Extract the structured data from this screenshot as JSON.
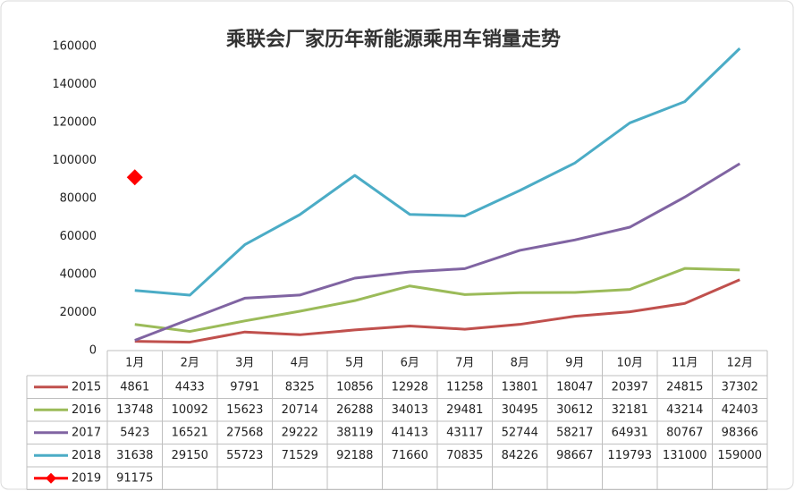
{
  "chart_data": {
    "type": "line",
    "title": "乘联会厂家历年新能源乘用车销量走势",
    "categories": [
      "1月",
      "2月",
      "3月",
      "4月",
      "5月",
      "6月",
      "7月",
      "8月",
      "9月",
      "10月",
      "11月",
      "12月"
    ],
    "ylim": [
      0,
      160000
    ],
    "yticks": [
      0,
      20000,
      40000,
      60000,
      80000,
      100000,
      120000,
      140000,
      160000
    ],
    "grid": false,
    "series": [
      {
        "name": "2015",
        "color": "#c0504d",
        "values": [
          4861,
          4433,
          9791,
          8325,
          10856,
          12928,
          11258,
          13801,
          18047,
          20397,
          24815,
          37302
        ]
      },
      {
        "name": "2016",
        "color": "#9bbb59",
        "values": [
          13748,
          10092,
          15623,
          20714,
          26288,
          34013,
          29481,
          30495,
          30612,
          32181,
          43214,
          42403
        ]
      },
      {
        "name": "2017",
        "color": "#8064a2",
        "values": [
          5423,
          16521,
          27568,
          29222,
          38119,
          41413,
          43117,
          52744,
          58217,
          64931,
          80767,
          98366
        ]
      },
      {
        "name": "2018",
        "color": "#4bacc6",
        "values": [
          31638,
          29150,
          55723,
          71529,
          92188,
          71660,
          70835,
          84226,
          98667,
          119793,
          131000,
          159000
        ]
      },
      {
        "name": "2019",
        "color": "#ff0000",
        "marker": "diamond",
        "values": [
          91175,
          null,
          null,
          null,
          null,
          null,
          null,
          null,
          null,
          null,
          null,
          null
        ]
      }
    ]
  }
}
